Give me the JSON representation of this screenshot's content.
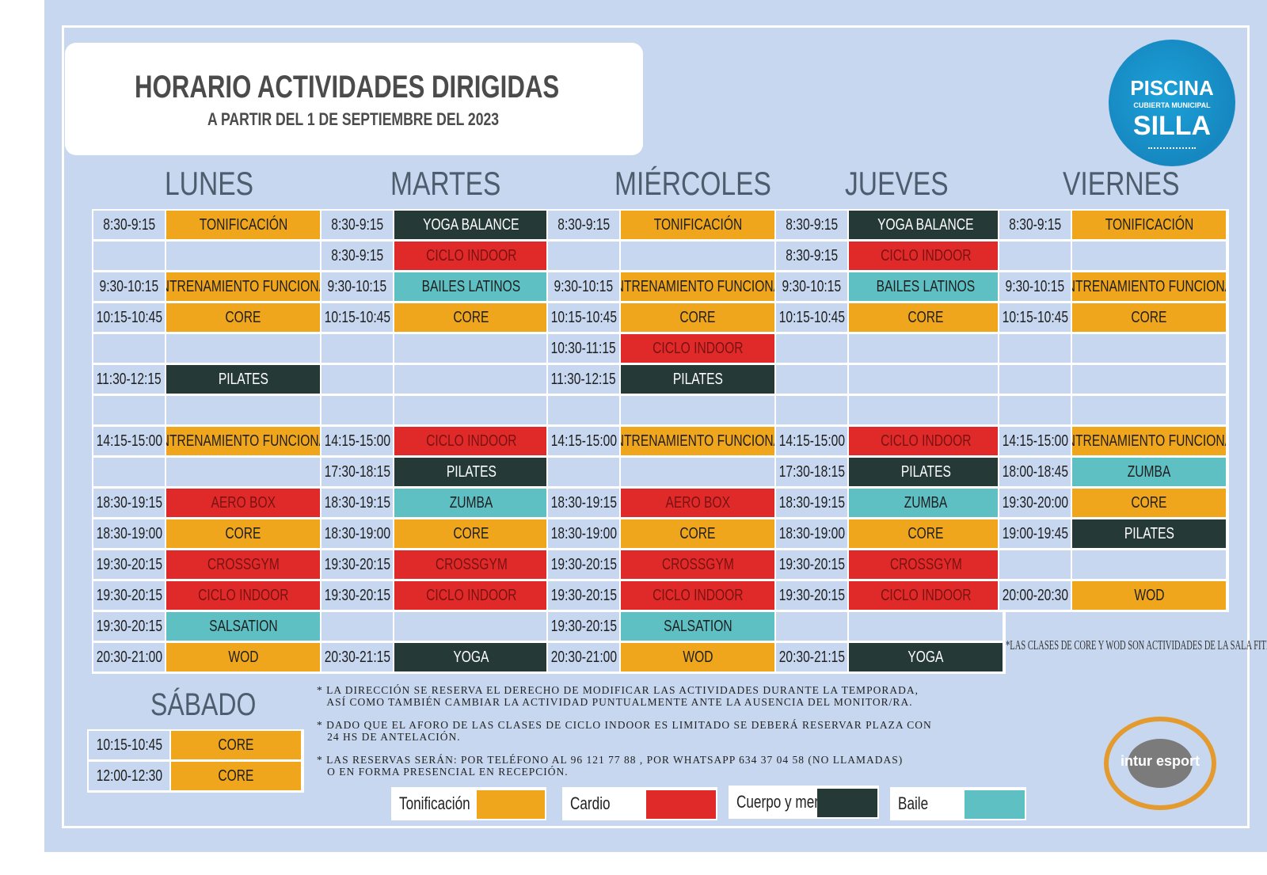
{
  "header": {
    "title": "HORARIO ACTIVIDADES DIRIGIDAS",
    "subtitle": "A PARTIR DEL 1 DE  SEPTIEMBRE  DEL 2023"
  },
  "logo": {
    "line1": "PISCINA",
    "line2": "CUBIERTA MUNICIPAL",
    "line3": "SILLA"
  },
  "days": {
    "mon": "LUNES",
    "tue": "MARTES",
    "wed": "MIÉRCOLES",
    "thu": "JUEVES",
    "fri": "VIERNES",
    "sat": "SÁBADO"
  },
  "category_colors": {
    "ton": "#f0a61c",
    "car": "#e02a2a",
    "cue": "#253a37",
    "bai": "#5fc0c4"
  },
  "schedule": {
    "mon": [
      [
        "8:30-9:15",
        "TONIFICACIÓN",
        "ton"
      ],
      [
        "",
        "",
        ""
      ],
      [
        "9:30-10:15",
        "ENTRENAMIENTO FUNCIONAL",
        "ton"
      ],
      [
        "10:15-10:45",
        "CORE",
        "ton"
      ],
      [
        "",
        "",
        ""
      ],
      [
        "11:30-12:15",
        "PILATES",
        "cue"
      ],
      [
        "",
        "",
        ""
      ],
      [
        "14:15-15:00",
        "ENTRENAMIENTO FUNCIONAL",
        "ton"
      ],
      [
        "",
        "",
        ""
      ],
      [
        "18:30-19:15",
        "AERO BOX",
        "car"
      ],
      [
        "18:30-19:00",
        "CORE",
        "ton"
      ],
      [
        "19:30-20:15",
        "CROSSGYM",
        "car"
      ],
      [
        "19:30-20:15",
        "CICLO INDOOR",
        "car"
      ],
      [
        "19:30-20:15",
        "SALSATION",
        "bai"
      ],
      [
        "20:30-21:00",
        "WOD",
        "ton"
      ]
    ],
    "tue": [
      [
        "8:30-9:15",
        "YOGA BALANCE",
        "cue"
      ],
      [
        "8:30-9:15",
        "CICLO INDOOR",
        "car"
      ],
      [
        "9:30-10:15",
        "BAILES LATINOS",
        "bai"
      ],
      [
        "10:15-10:45",
        "CORE",
        "ton"
      ],
      [
        "",
        "",
        ""
      ],
      [
        "",
        "",
        ""
      ],
      [
        "",
        "",
        ""
      ],
      [
        "14:15-15:00",
        "CICLO INDOOR",
        "car"
      ],
      [
        "17:30-18:15",
        "PILATES",
        "cue"
      ],
      [
        "18:30-19:15",
        "ZUMBA",
        "bai"
      ],
      [
        "18:30-19:00",
        "CORE",
        "ton"
      ],
      [
        "19:30-20:15",
        "CROSSGYM",
        "car"
      ],
      [
        "19:30-20:15",
        "CICLO INDOOR",
        "car"
      ],
      [
        "",
        "",
        ""
      ],
      [
        "20:30-21:15",
        "YOGA",
        "cue"
      ]
    ],
    "wed": [
      [
        "8:30-9:15",
        "TONIFICACIÓN",
        "ton"
      ],
      [
        "",
        "",
        ""
      ],
      [
        "9:30-10:15",
        "ENTRENAMIENTO FUNCIONAL",
        "ton"
      ],
      [
        "10:15-10:45",
        "CORE",
        "ton"
      ],
      [
        "10:30-11:15",
        "CICLO INDOOR",
        "car"
      ],
      [
        "11:30-12:15",
        "PILATES",
        "cue"
      ],
      [
        "",
        "",
        ""
      ],
      [
        "14:15-15:00",
        "ENTRENAMIENTO FUNCIONAL",
        "ton"
      ],
      [
        "",
        "",
        ""
      ],
      [
        "18:30-19:15",
        "AERO BOX",
        "car"
      ],
      [
        "18:30-19:00",
        "CORE",
        "ton"
      ],
      [
        "19:30-20:15",
        "CROSSGYM",
        "car"
      ],
      [
        "19:30-20:15",
        "CICLO INDOOR",
        "car"
      ],
      [
        "19:30-20:15",
        "SALSATION",
        "bai"
      ],
      [
        "20:30-21:00",
        "WOD",
        "ton"
      ]
    ],
    "thu": [
      [
        "8:30-9:15",
        "YOGA BALANCE",
        "cue"
      ],
      [
        "8:30-9:15",
        "CICLO INDOOR",
        "car"
      ],
      [
        "9:30-10:15",
        "BAILES LATINOS",
        "bai"
      ],
      [
        "10:15-10:45",
        "CORE",
        "ton"
      ],
      [
        "",
        "",
        ""
      ],
      [
        "",
        "",
        ""
      ],
      [
        "",
        "",
        ""
      ],
      [
        "14:15-15:00",
        "CICLO INDOOR",
        "car"
      ],
      [
        "17:30-18:15",
        "PILATES",
        "cue"
      ],
      [
        "18:30-19:15",
        "ZUMBA",
        "bai"
      ],
      [
        "18:30-19:00",
        "CORE",
        "ton"
      ],
      [
        "19:30-20:15",
        "CROSSGYM",
        "car"
      ],
      [
        "19:30-20:15",
        "CICLO INDOOR",
        "car"
      ],
      [
        "",
        "",
        ""
      ],
      [
        "20:30-21:15",
        "YOGA",
        "cue"
      ]
    ],
    "fri": [
      [
        "8:30-9:15",
        "TONIFICACIÓN",
        "ton"
      ],
      [
        "",
        "",
        ""
      ],
      [
        "9:30-10:15",
        "ENTRENAMIENTO FUNCIONAL",
        "ton"
      ],
      [
        "10:15-10:45",
        "CORE",
        "ton"
      ],
      [
        "",
        "",
        ""
      ],
      [
        "",
        "",
        ""
      ],
      [
        "",
        "",
        ""
      ],
      [
        "14:15-15:00",
        "ENTRENAMIENTO FUNCIONAL",
        "ton"
      ],
      [
        "18:00-18:45",
        "ZUMBA",
        "bai"
      ],
      [
        "19:30-20:00",
        "CORE",
        "ton"
      ],
      [
        "19:00-19:45",
        "PILATES",
        "cue"
      ],
      [
        "",
        "",
        ""
      ],
      [
        "20:00-20:30",
        "WOD",
        "ton"
      ]
    ],
    "sat": [
      [
        "10:15-10:45",
        "CORE",
        "ton"
      ],
      [
        "12:00-12:30",
        "CORE",
        "ton"
      ]
    ]
  },
  "footnote": "*LAS CLASES DE CORE Y WOD SON ACTIVIDADES DE LA SALA FITNESS.",
  "notes": [
    "* LA DIRECCIÓN SE RESERVA EL DERECHO DE MODIFICAR LAS ACTIVIDADES DURANTE LA TEMPORADA,\n   ASÍ COMO TAMBIÉN CAMBIAR LA ACTIVIDAD PUNTUALMENTE ANTE LA AUSENCIA DEL MONITOR/RA.",
    "* DADO QUE EL AFORO DE LAS CLASES DE CICLO INDOOR ES LIMITADO SE DEBERÁ RESERVAR PLAZA CON\n   24 HS DE ANTELACIÓN.",
    "* LAS RESERVAS SERÁN: POR TELÉFONO AL 96 121 77 88 , POR WHATSAPP 634 37 04 58 (NO LLAMADAS)\n   O EN FORMA PRESENCIAL EN RECEPCIÓN."
  ],
  "legend": [
    {
      "label": "Tonificación",
      "color": "#f0a61c"
    },
    {
      "label": "Cardio",
      "color": "#e02a2a"
    },
    {
      "label": "Cuerpo y mente",
      "color": "#253a37"
    },
    {
      "label": "Baile",
      "color": "#5fc0c4"
    }
  ],
  "stamp": {
    "text": "intur esport"
  }
}
